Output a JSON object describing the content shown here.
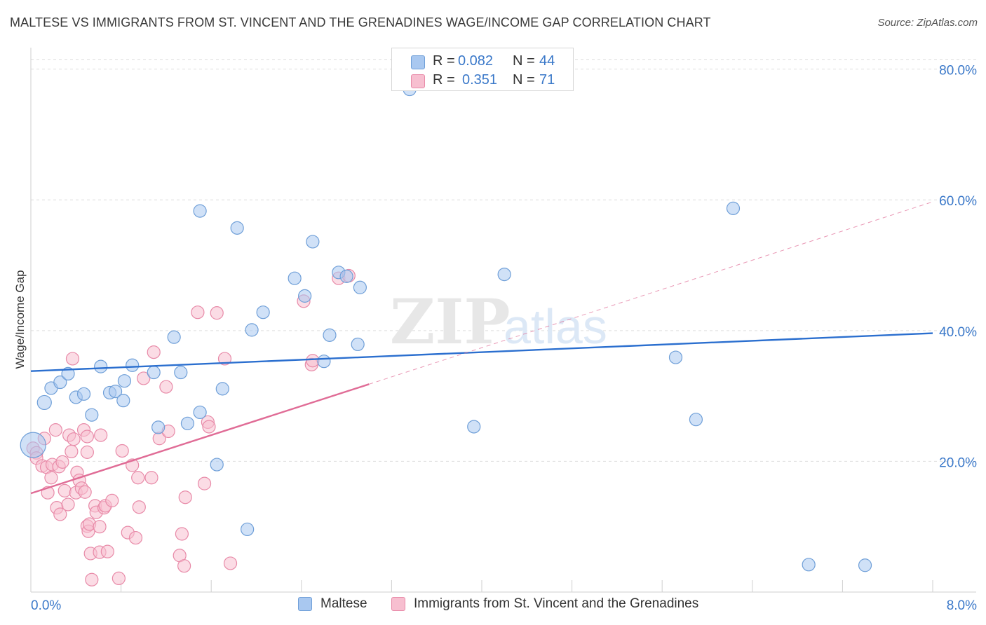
{
  "header": {
    "title": "MALTESE VS IMMIGRANTS FROM ST. VINCENT AND THE GRENADINES WAGE/INCOME GAP CORRELATION CHART",
    "source": "Source: ZipAtlas.com"
  },
  "stats": [
    {
      "r_label": "R =",
      "r_value": "0.082",
      "n_label": "N =",
      "n_value": "44",
      "color": "#a9c8f0",
      "stroke": "#6f9fd8"
    },
    {
      "r_label": "R =",
      "r_value": "0.351",
      "n_label": "N =",
      "n_value": "71",
      "color": "#f7bfd0",
      "stroke": "#e88aa8"
    }
  ],
  "legend": [
    {
      "label": "Maltese",
      "color": "#a9c8f0",
      "stroke": "#6f9fd8"
    },
    {
      "label": "Immigrants from St. Vincent and the Grenadines",
      "color": "#f7bfd0",
      "stroke": "#e88aa8"
    }
  ],
  "watermark": {
    "zip": "ZIP",
    "atlas": "atlas"
  },
  "chart_data": {
    "type": "scatter",
    "title": "MALTESE VS IMMIGRANTS FROM ST. VINCENT AND THE GRENADINES WAGE/INCOME GAP CORRELATION CHART",
    "xlabel": "",
    "ylabel": "Wage/Income Gap",
    "xlim": [
      0,
      8
    ],
    "ylim": [
      0,
      82
    ],
    "x_tick_labels": [
      {
        "value": 0,
        "label": "0.0%"
      },
      {
        "value": 8,
        "label": "8.0%"
      }
    ],
    "y_tick_labels": [
      {
        "value": 20,
        "label": "20.0%"
      },
      {
        "value": 40,
        "label": "40.0%"
      },
      {
        "value": 60,
        "label": "60.0%"
      },
      {
        "value": 80,
        "label": "80.0%"
      }
    ],
    "x_minor_ticks": [
      0.8,
      1.6,
      2.4,
      3.2,
      4.0,
      4.8,
      5.6,
      6.4,
      7.2,
      8.0
    ],
    "grid": true,
    "legend_position": "bottom",
    "series": [
      {
        "name": "Maltese",
        "color": "#a9c8f0",
        "stroke": "#6f9fd8",
        "trend": {
          "x0": 0,
          "y0": 33.8,
          "x1": 8.0,
          "y1": 39.6,
          "color": "#2b6fcf",
          "dashed_extension": false
        },
        "points": [
          [
            0.02,
            22.5,
            18
          ],
          [
            0.12,
            29.0,
            10
          ],
          [
            0.18,
            31.2,
            9
          ],
          [
            0.26,
            32.1,
            9
          ],
          [
            0.33,
            33.4,
            9
          ],
          [
            0.4,
            29.8,
            9
          ],
          [
            0.47,
            30.3,
            9
          ],
          [
            0.54,
            27.1,
            9
          ],
          [
            0.62,
            34.5,
            9
          ],
          [
            0.7,
            30.5,
            9
          ],
          [
            0.75,
            30.7,
            9
          ],
          [
            0.82,
            29.3,
            9
          ],
          [
            0.83,
            32.3,
            9
          ],
          [
            0.9,
            34.7,
            9
          ],
          [
            1.09,
            33.6,
            9
          ],
          [
            1.13,
            25.2,
            9
          ],
          [
            1.27,
            39.0,
            9
          ],
          [
            1.33,
            33.6,
            9
          ],
          [
            1.39,
            25.8,
            9
          ],
          [
            1.5,
            27.5,
            9
          ],
          [
            1.5,
            58.3,
            9
          ],
          [
            1.65,
            19.5,
            9
          ],
          [
            1.7,
            31.1,
            9
          ],
          [
            1.83,
            55.7,
            9
          ],
          [
            1.92,
            9.6,
            9
          ],
          [
            1.96,
            40.1,
            9
          ],
          [
            2.06,
            42.8,
            9
          ],
          [
            2.34,
            48.0,
            9
          ],
          [
            2.43,
            45.3,
            9
          ],
          [
            2.5,
            53.6,
            9
          ],
          [
            2.6,
            35.3,
            9
          ],
          [
            2.65,
            39.3,
            9
          ],
          [
            2.73,
            48.9,
            9
          ],
          [
            2.8,
            48.3,
            9
          ],
          [
            2.9,
            37.9,
            9
          ],
          [
            2.92,
            46.6,
            9
          ],
          [
            3.36,
            76.9,
            9
          ],
          [
            3.93,
            25.3,
            9
          ],
          [
            4.2,
            48.6,
            9
          ],
          [
            5.72,
            35.9,
            9
          ],
          [
            5.9,
            26.4,
            9
          ],
          [
            6.23,
            58.7,
            9
          ],
          [
            6.9,
            4.2,
            9
          ],
          [
            7.4,
            4.1,
            9
          ]
        ]
      },
      {
        "name": "Immigrants from St. Vincent and the Grenadines",
        "color": "#f7bfd0",
        "stroke": "#e88aa8",
        "trend": {
          "x0": 0,
          "y0": 15.1,
          "x1": 3.0,
          "y1": 31.8,
          "color": "#e06c96",
          "dashed_extension": true,
          "ext_x1": 8.0,
          "ext_y1": 59.7
        },
        "points": [
          [
            0.02,
            22.0,
            9
          ],
          [
            0.05,
            21.3,
            9
          ],
          [
            0.05,
            20.5,
            9
          ],
          [
            0.12,
            23.5,
            9
          ],
          [
            0.1,
            19.3,
            9
          ],
          [
            0.14,
            19.1,
            9
          ],
          [
            0.15,
            15.2,
            9
          ],
          [
            0.18,
            17.5,
            9
          ],
          [
            0.19,
            19.5,
            9
          ],
          [
            0.22,
            24.8,
            9
          ],
          [
            0.23,
            12.9,
            9
          ],
          [
            0.25,
            19.2,
            9
          ],
          [
            0.26,
            11.9,
            9
          ],
          [
            0.28,
            19.9,
            9
          ],
          [
            0.3,
            15.5,
            9
          ],
          [
            0.33,
            13.4,
            9
          ],
          [
            0.34,
            24.0,
            9
          ],
          [
            0.36,
            21.5,
            9
          ],
          [
            0.37,
            35.7,
            9
          ],
          [
            0.38,
            23.4,
            9
          ],
          [
            0.4,
            15.2,
            9
          ],
          [
            0.41,
            18.3,
            9
          ],
          [
            0.43,
            17.1,
            9
          ],
          [
            0.45,
            15.9,
            9
          ],
          [
            0.47,
            24.8,
            9
          ],
          [
            0.48,
            15.3,
            9
          ],
          [
            0.5,
            21.4,
            9
          ],
          [
            0.5,
            23.8,
            9
          ],
          [
            0.5,
            10.1,
            9
          ],
          [
            0.51,
            9.3,
            9
          ],
          [
            0.52,
            10.4,
            9
          ],
          [
            0.53,
            5.9,
            9
          ],
          [
            0.54,
            1.9,
            9
          ],
          [
            0.57,
            13.2,
            9
          ],
          [
            0.58,
            12.2,
            9
          ],
          [
            0.61,
            6.1,
            9
          ],
          [
            0.61,
            10.0,
            9
          ],
          [
            0.62,
            24.0,
            9
          ],
          [
            0.65,
            12.9,
            9
          ],
          [
            0.66,
            13.2,
            9
          ],
          [
            0.68,
            6.2,
            9
          ],
          [
            0.72,
            14.0,
            9
          ],
          [
            0.78,
            2.1,
            9
          ],
          [
            0.81,
            21.6,
            9
          ],
          [
            0.86,
            9.1,
            9
          ],
          [
            0.9,
            19.4,
            9
          ],
          [
            0.93,
            8.3,
            9
          ],
          [
            0.95,
            17.5,
            9
          ],
          [
            0.96,
            13.0,
            9
          ],
          [
            1.0,
            32.7,
            9
          ],
          [
            1.07,
            17.5,
            9
          ],
          [
            1.09,
            36.7,
            9
          ],
          [
            1.14,
            23.5,
            9
          ],
          [
            1.2,
            31.4,
            9
          ],
          [
            1.22,
            24.6,
            9
          ],
          [
            1.32,
            5.6,
            9
          ],
          [
            1.34,
            8.9,
            9
          ],
          [
            1.36,
            4.0,
            9
          ],
          [
            1.37,
            14.5,
            9
          ],
          [
            1.48,
            42.8,
            9
          ],
          [
            1.54,
            16.6,
            9
          ],
          [
            1.57,
            26.0,
            9
          ],
          [
            1.58,
            25.3,
            9
          ],
          [
            1.65,
            42.7,
            9
          ],
          [
            1.72,
            35.7,
            9
          ],
          [
            1.77,
            4.4,
            9
          ],
          [
            2.42,
            44.5,
            9
          ],
          [
            2.49,
            34.8,
            9
          ],
          [
            2.5,
            35.4,
            9
          ],
          [
            2.73,
            48.0,
            9
          ],
          [
            2.82,
            48.4,
            9
          ]
        ]
      }
    ]
  }
}
